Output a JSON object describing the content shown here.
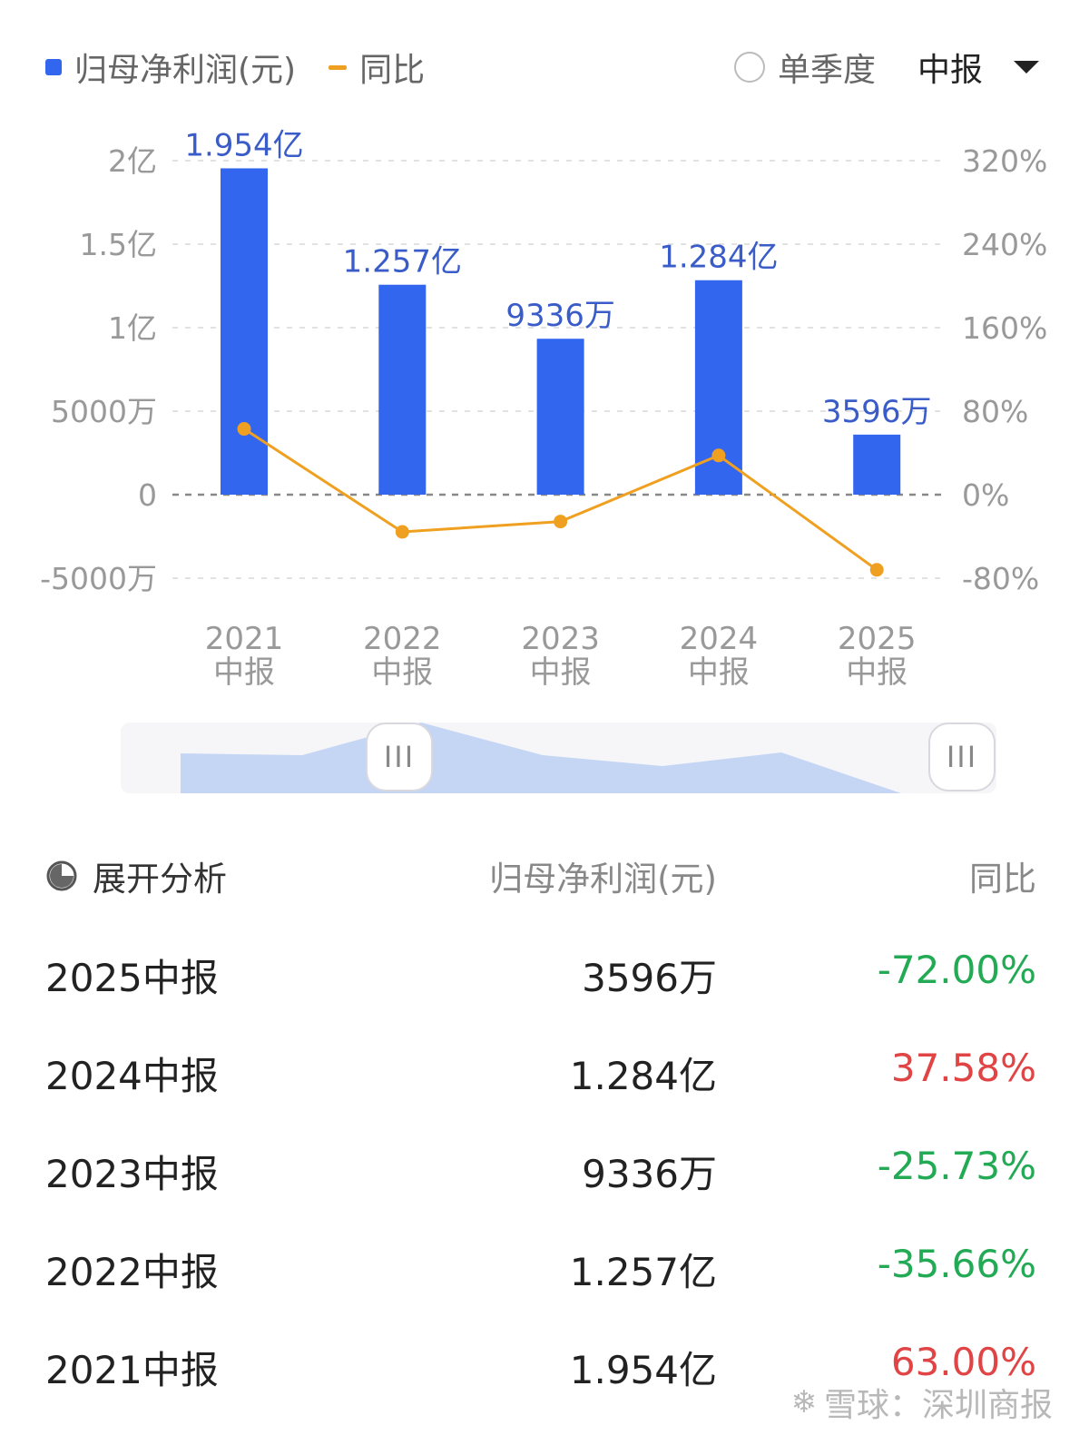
{
  "legend": {
    "bar_label": "归母净利润(元)",
    "line_label": "同比"
  },
  "controls": {
    "radio_label": "单季度",
    "period": "中报"
  },
  "chart_data": {
    "type": "bar",
    "categories": [
      "2021\n中报",
      "2022\n中报",
      "2023\n中报",
      "2024\n中报",
      "2025\n中报"
    ],
    "series": [
      {
        "name": "归母净利润(元)",
        "values": [
          195400000,
          125700000,
          93360000,
          128400000,
          35960000
        ],
        "labels": [
          "1.954亿",
          "1.257亿",
          "9336万",
          "1.284亿",
          "3596万"
        ],
        "color": "#3366ee"
      },
      {
        "name": "同比",
        "type": "line",
        "values": [
          63.0,
          -35.66,
          -25.73,
          37.58,
          -72.0
        ],
        "color": "#f0a020"
      }
    ],
    "left_axis": {
      "ticks": [
        200000000,
        150000000,
        100000000,
        50000000,
        0,
        -50000000
      ],
      "tick_labels": [
        "2亿",
        "1.5亿",
        "1亿",
        "5000万",
        "0",
        "-5000万"
      ],
      "ylim": [
        -50000000,
        200000000
      ]
    },
    "right_axis": {
      "ticks": [
        320,
        240,
        160,
        80,
        0,
        -80
      ],
      "tick_labels": [
        "320%",
        "240%",
        "160%",
        "80%",
        "0%",
        "-80%"
      ],
      "ylim": [
        -80,
        320
      ]
    }
  },
  "slider": {
    "handle_glyph": "III"
  },
  "table": {
    "header": {
      "expand": "展开分析",
      "col_value": "归母净利润(元)",
      "col_yoy": "同比"
    },
    "rows": [
      {
        "period": "2025中报",
        "value": "3596万",
        "yoy": "-72.00%",
        "trend": "neg"
      },
      {
        "period": "2024中报",
        "value": "1.284亿",
        "yoy": "37.58%",
        "trend": "pos"
      },
      {
        "period": "2023中报",
        "value": "9336万",
        "yoy": "-25.73%",
        "trend": "neg"
      },
      {
        "period": "2022中报",
        "value": "1.257亿",
        "yoy": "-35.66%",
        "trend": "neg"
      },
      {
        "period": "2021中报",
        "value": "1.954亿",
        "yoy": "63.00%",
        "trend": "pos"
      }
    ]
  },
  "watermark": {
    "text": "雪球：深圳商报"
  }
}
